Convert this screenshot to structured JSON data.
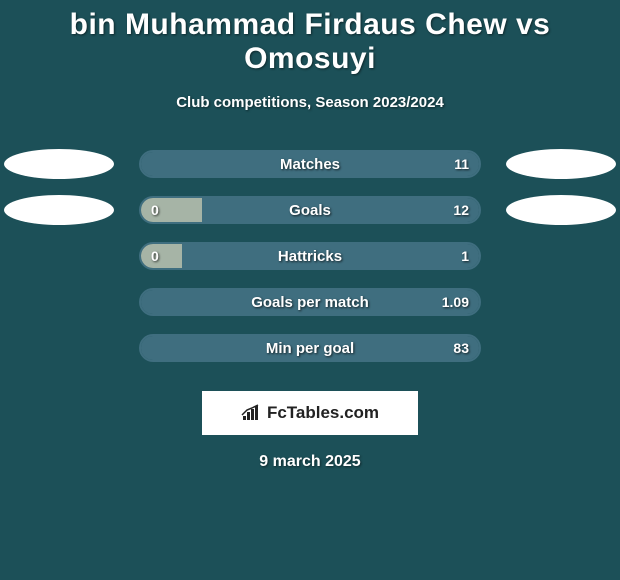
{
  "background_color": "#1c5058",
  "text_color": "#ffffff",
  "team_color_left": "#a6b4a6",
  "team_color_right": "#3f6e7f",
  "bar_border_color": "#3f6e7f",
  "title": "bin Muhammad Firdaus Chew vs Omosuyi",
  "subtitle": "Club competitions, Season 2023/2024",
  "date": "9 march 2025",
  "logo_text": "FcTables.com",
  "ellipses": [
    {
      "row": 0,
      "side": "left"
    },
    {
      "row": 0,
      "side": "right"
    },
    {
      "row": 1,
      "side": "left"
    },
    {
      "row": 1,
      "side": "right"
    }
  ],
  "bars": [
    {
      "label": "Matches",
      "left_val": "",
      "right_val": "11",
      "left_pct": 0,
      "right_pct": 100
    },
    {
      "label": "Goals",
      "left_val": "0",
      "right_val": "12",
      "left_pct": 18,
      "right_pct": 82
    },
    {
      "label": "Hattricks",
      "left_val": "0",
      "right_val": "1",
      "left_pct": 12,
      "right_pct": 88
    },
    {
      "label": "Goals per match",
      "left_val": "",
      "right_val": "1.09",
      "left_pct": 0,
      "right_pct": 100
    },
    {
      "label": "Min per goal",
      "left_val": "",
      "right_val": "83",
      "left_pct": 0,
      "right_pct": 100
    }
  ]
}
